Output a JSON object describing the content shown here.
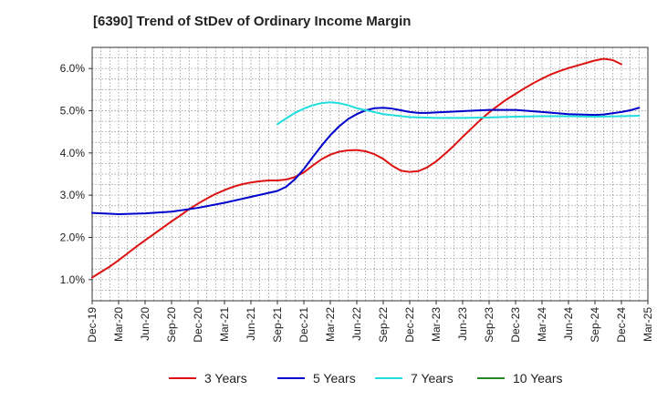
{
  "chart_data": {
    "type": "line",
    "title": "[6390]  Trend of StDev of Ordinary Income Margin",
    "xlabel": "",
    "ylabel": "",
    "x_ticks": [
      "Dec-19",
      "Mar-20",
      "Jun-20",
      "Sep-20",
      "Dec-20",
      "Mar-21",
      "Jun-21",
      "Sep-21",
      "Dec-21",
      "Mar-22",
      "Jun-22",
      "Sep-22",
      "Dec-22",
      "Mar-23",
      "Jun-23",
      "Sep-23",
      "Dec-23",
      "Mar-24",
      "Jun-24",
      "Sep-24",
      "Dec-24",
      "Mar-25"
    ],
    "y_ticks": [
      "1.0%",
      "2.0%",
      "3.0%",
      "4.0%",
      "5.0%",
      "6.0%"
    ],
    "y_tick_values": [
      1.0,
      2.0,
      3.0,
      4.0,
      5.0,
      6.0
    ],
    "ylim": [
      0.5,
      6.5
    ],
    "grid": true,
    "legend_position": "bottom",
    "series": [
      {
        "name": "3 Years",
        "color": "#dd1111",
        "points": [
          [
            "Dec-19",
            1.05
          ],
          [
            "Jan-20",
            1.18
          ],
          [
            "Feb-20",
            1.31
          ],
          [
            "Mar-20",
            1.46
          ],
          [
            "Apr-20",
            1.62
          ],
          [
            "May-20",
            1.78
          ],
          [
            "Jun-20",
            1.93
          ],
          [
            "Jul-20",
            2.08
          ],
          [
            "Aug-20",
            2.23
          ],
          [
            "Sep-20",
            2.38
          ],
          [
            "Oct-20",
            2.52
          ],
          [
            "Nov-20",
            2.67
          ],
          [
            "Dec-20",
            2.8
          ],
          [
            "Jan-21",
            2.92
          ],
          [
            "Feb-21",
            3.03
          ],
          [
            "Mar-21",
            3.12
          ],
          [
            "Apr-21",
            3.2
          ],
          [
            "May-21",
            3.26
          ],
          [
            "Jun-21",
            3.3
          ],
          [
            "Jul-21",
            3.33
          ],
          [
            "Aug-21",
            3.35
          ],
          [
            "Sep-21",
            3.35
          ],
          [
            "Oct-21",
            3.37
          ],
          [
            "Nov-21",
            3.43
          ],
          [
            "Dec-21",
            3.54
          ],
          [
            "Jan-22",
            3.7
          ],
          [
            "Feb-22",
            3.85
          ],
          [
            "Mar-22",
            3.96
          ],
          [
            "Apr-22",
            4.03
          ],
          [
            "May-22",
            4.06
          ],
          [
            "Jun-22",
            4.07
          ],
          [
            "Jul-22",
            4.04
          ],
          [
            "Aug-22",
            3.97
          ],
          [
            "Sep-22",
            3.86
          ],
          [
            "Oct-22",
            3.7
          ],
          [
            "Nov-22",
            3.58
          ],
          [
            "Dec-22",
            3.55
          ],
          [
            "Jan-23",
            3.57
          ],
          [
            "Feb-23",
            3.66
          ],
          [
            "Mar-23",
            3.8
          ],
          [
            "Apr-23",
            3.98
          ],
          [
            "May-23",
            4.17
          ],
          [
            "Jun-23",
            4.38
          ],
          [
            "Jul-23",
            4.58
          ],
          [
            "Aug-23",
            4.78
          ],
          [
            "Sep-23",
            4.96
          ],
          [
            "Oct-23",
            5.12
          ],
          [
            "Nov-23",
            5.27
          ],
          [
            "Dec-23",
            5.4
          ],
          [
            "Jan-24",
            5.53
          ],
          [
            "Feb-24",
            5.65
          ],
          [
            "Mar-24",
            5.76
          ],
          [
            "Apr-24",
            5.86
          ],
          [
            "May-24",
            5.94
          ],
          [
            "Jun-24",
            6.01
          ],
          [
            "Jul-24",
            6.07
          ],
          [
            "Aug-24",
            6.13
          ],
          [
            "Sep-24",
            6.19
          ],
          [
            "Oct-24",
            6.23
          ],
          [
            "Nov-24",
            6.2
          ],
          [
            "Dec-24",
            6.1
          ]
        ]
      },
      {
        "name": "5 Years",
        "color": "#0000cc",
        "points": [
          [
            "Dec-19",
            2.58
          ],
          [
            "Mar-20",
            2.55
          ],
          [
            "Jun-20",
            2.57
          ],
          [
            "Sep-20",
            2.61
          ],
          [
            "Dec-20",
            2.7
          ],
          [
            "Mar-21",
            2.82
          ],
          [
            "Jun-21",
            2.96
          ],
          [
            "Sep-21",
            3.1
          ],
          [
            "Oct-21",
            3.2
          ],
          [
            "Nov-21",
            3.38
          ],
          [
            "Dec-21",
            3.62
          ],
          [
            "Jan-22",
            3.9
          ],
          [
            "Feb-22",
            4.17
          ],
          [
            "Mar-22",
            4.42
          ],
          [
            "Apr-22",
            4.63
          ],
          [
            "May-22",
            4.8
          ],
          [
            "Jun-22",
            4.92
          ],
          [
            "Jul-22",
            5.01
          ],
          [
            "Aug-22",
            5.06
          ],
          [
            "Sep-22",
            5.07
          ],
          [
            "Oct-22",
            5.05
          ],
          [
            "Nov-22",
            5.01
          ],
          [
            "Dec-22",
            4.97
          ],
          [
            "Jan-23",
            4.95
          ],
          [
            "Feb-23",
            4.95
          ],
          [
            "Mar-23",
            4.96
          ],
          [
            "Jun-23",
            4.99
          ],
          [
            "Sep-23",
            5.02
          ],
          [
            "Dec-23",
            5.02
          ],
          [
            "Mar-24",
            4.97
          ],
          [
            "Jun-24",
            4.92
          ],
          [
            "Sep-24",
            4.9
          ],
          [
            "Oct-24",
            4.91
          ],
          [
            "Nov-24",
            4.94
          ],
          [
            "Dec-24",
            4.97
          ],
          [
            "Jan-25",
            5.01
          ],
          [
            "Feb-25",
            5.07
          ]
        ]
      },
      {
        "name": "7 Years",
        "color": "#22dddd",
        "points": [
          [
            "Sep-21",
            4.68
          ],
          [
            "Oct-21",
            4.82
          ],
          [
            "Nov-21",
            4.95
          ],
          [
            "Dec-21",
            5.05
          ],
          [
            "Jan-22",
            5.13
          ],
          [
            "Feb-22",
            5.18
          ],
          [
            "Mar-22",
            5.2
          ],
          [
            "Apr-22",
            5.18
          ],
          [
            "May-22",
            5.13
          ],
          [
            "Jun-22",
            5.06
          ],
          [
            "Sep-22",
            4.92
          ],
          [
            "Dec-22",
            4.85
          ],
          [
            "Mar-23",
            4.83
          ],
          [
            "Jun-23",
            4.83
          ],
          [
            "Sep-23",
            4.84
          ],
          [
            "Dec-23",
            4.86
          ],
          [
            "Mar-24",
            4.87
          ],
          [
            "Jun-24",
            4.87
          ],
          [
            "Sep-24",
            4.86
          ],
          [
            "Dec-24",
            4.87
          ],
          [
            "Feb-25",
            4.88
          ]
        ]
      },
      {
        "name": "10 Years",
        "color": "#228822",
        "points": []
      }
    ]
  }
}
